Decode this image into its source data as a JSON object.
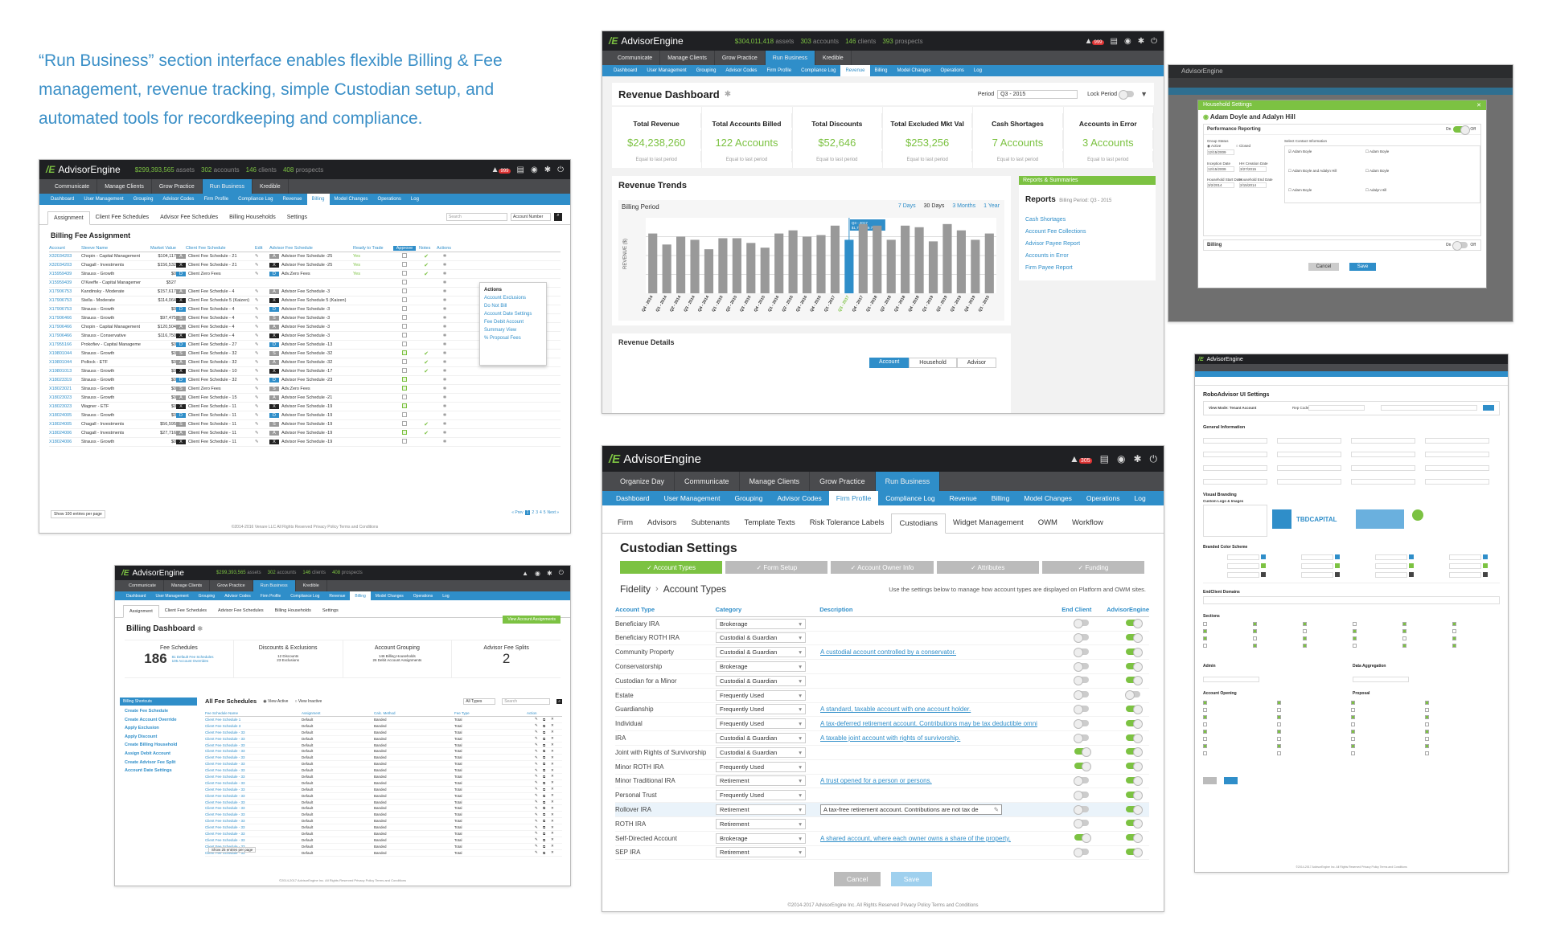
{
  "tagline": "“Run Business” section interface enables flexible Billing & Fee management, revenue tracking, simple Custodian setup, and automated tools for recordkeeping and compliance.",
  "brand": "AdvisorEngine",
  "s1": {
    "assets": "$299,393,565",
    "assets_lbl": "assets",
    "accts": "302",
    "accts_lbl": "accounts",
    "clients": "146",
    "clients_lbl": "clients",
    "prospects": "408",
    "prospects_lbl": "prospects",
    "badge": "999",
    "nav1": [
      "Communicate",
      "Manage Clients",
      "Grow Practice",
      "Run Business",
      "Kredible"
    ],
    "nav2": [
      "Dashboard",
      "User Management",
      "Grouping",
      "Advisor Codes",
      "Firm Profile",
      "Compliance Log",
      "Revenue",
      "Billing",
      "Model Changes",
      "Operations",
      "Log"
    ],
    "tabs": [
      "Assignment",
      "Client Fee Schedules",
      "Advisor Fee Schedules",
      "Billing Households",
      "Settings"
    ],
    "search_placeholder": "Search",
    "filter": "Account Number",
    "title": "Billing Fee Assignment",
    "headers": [
      "Account",
      "Sleeve Name",
      "Market Value",
      "Client Fee Schedule",
      "Edit",
      "Advisor Fee Schedule",
      "Ready to Trade",
      "Approve",
      "Notes",
      "Actions"
    ],
    "rows": [
      [
        "X32034203",
        "Chopin - Capital Management",
        "$104,117",
        "Client Fee Schedule - 21",
        "Advisor Fee Schedule -25",
        "Yes"
      ],
      [
        "X32034203",
        "Chagall - Investments",
        "$156,532",
        "Client Fee Schedule - 21",
        "Advisor Fee Schedule -25",
        "Yes"
      ],
      [
        "X15959439",
        "Strauss - Growth",
        "$0",
        "Client Zero Fees",
        "Adv.Zero Fees",
        "Yes"
      ],
      [
        "X15959439",
        "O'Keeffe - Capital Management",
        "$527",
        "",
        "",
        ""
      ],
      [
        "X17906753",
        "Kandinsky - Moderate",
        "$157,617",
        "Client Fee Schedule - 4",
        "Advisor Fee Schedule -3",
        ""
      ],
      [
        "X17906753",
        "Stella - Moderate",
        "$114,064",
        "Client Fee Schedule 5 (Kaizen)",
        "Advisor Fee Schedule 5 (Kaizen)",
        ""
      ],
      [
        "X17906753",
        "Strauss - Growth",
        "$0",
        "Client Fee Schedule - 4",
        "Advisor Fee Schedule -3",
        ""
      ],
      [
        "X17906466",
        "Strauss - Growth",
        "$97,475",
        "Client Fee Schedule - 4",
        "Advisor Fee Schedule -3",
        ""
      ],
      [
        "X17906466",
        "Chopin - Capital Management",
        "$120,504",
        "Client Fee Schedule - 4",
        "Advisor Fee Schedule -3",
        ""
      ],
      [
        "X17906466",
        "Strauss - Conservative",
        "$116,750",
        "Client Fee Schedule - 4",
        "Advisor Fee Schedule -3",
        ""
      ],
      [
        "X17955166",
        "Prokofiev - Capital Management",
        "$0",
        "Client Fee Schedule - 27",
        "Advisor Fee Schedule -13",
        ""
      ],
      [
        "X19801044",
        "Strauss - Growth",
        "$0",
        "Client Fee Schedule - 32",
        "Advisor Fee Schedule -32",
        ""
      ],
      [
        "X19801044",
        "Pollock - ETF",
        "$0",
        "Client Fee Schedule - 32",
        "Advisor Fee Schedule -32",
        ""
      ],
      [
        "X19801013",
        "Strauss - Growth",
        "$0",
        "Client Fee Schedule - 10",
        "Advisor Fee Schedule -17",
        ""
      ],
      [
        "X18023319",
        "Strauss - Growth",
        "$0",
        "Client Fee Schedule - 32",
        "Advisor Fee Schedule -23",
        ""
      ],
      [
        "X18023021",
        "Strauss - Growth",
        "$0",
        "Client Zero Fees",
        "Adv.Zero Fees",
        ""
      ],
      [
        "X18023023",
        "Strauss - Growth",
        "$0",
        "Client Fee Schedule - 15",
        "Advisor Fee Schedule -21",
        ""
      ],
      [
        "X18023023",
        "Wagner - ETF",
        "$0",
        "Client Fee Schedule - 11",
        "Advisor Fee Schedule -19",
        ""
      ],
      [
        "X18024005",
        "Strauss - Growth",
        "$0",
        "Client Fee Schedule - 11",
        "Advisor Fee Schedule -19",
        ""
      ],
      [
        "X18024005",
        "Chagall - Investments",
        "$56,595",
        "Client Fee Schedule - 11",
        "Advisor Fee Schedule -19",
        ""
      ],
      [
        "X18024006",
        "Chagall - Investments",
        "$27,716",
        "Client Fee Schedule - 11",
        "Advisor Fee Schedule -19",
        ""
      ],
      [
        "X18024006",
        "Strauss - Growth",
        "$0",
        "Client Fee Schedule - 11",
        "Advisor Fee Schedule -19",
        ""
      ]
    ],
    "actions_title": "Actions",
    "actions": [
      "Account Exclusions",
      "Do Not Bill",
      "Account Date Settings",
      "Fee Debit Account",
      "Summary View",
      "% Proposal Fees"
    ],
    "show": "Show 100 entries per page",
    "pages": [
      "« Prev",
      "1",
      "2",
      "3",
      "4",
      "5",
      "Next »"
    ],
    "footer": "©2014-2016 Venare LLC All Rights Reserved   Privacy Policy   Terms and Conditions"
  },
  "s2": {
    "assets": "$304,011,418",
    "assets_lbl": "assets",
    "accts": "303",
    "accts_lbl": "accounts",
    "clients": "146",
    "clients_lbl": "clients",
    "prospects": "393",
    "prospects_lbl": "prospects",
    "badge": "999",
    "nav1": [
      "Communicate",
      "Manage Clients",
      "Grow Practice",
      "Run Business",
      "Kredible"
    ],
    "nav2": [
      "Dashboard",
      "User Management",
      "Grouping",
      "Advisor Codes",
      "Firm Profile",
      "Compliance Log",
      "Revenue",
      "Billing",
      "Model Changes",
      "Operations",
      "Log"
    ],
    "title": "Revenue Dashboard",
    "period_lbl": "Period",
    "period": "Q3 - 2015",
    "lock": "Lock Period",
    "kpis": [
      {
        "t": "Total Revenue",
        "v": "$24,238,260",
        "s": "Equal to last period"
      },
      {
        "t": "Total Accounts Billed",
        "v": "122 Accounts",
        "s": "Equal to last period"
      },
      {
        "t": "Total Discounts",
        "v": "$52,646",
        "s": "Equal to last period"
      },
      {
        "t": "Total Excluded Mkt Val",
        "v": "$253,256",
        "s": "Equal to last period"
      },
      {
        "t": "Cash Shortages",
        "v": "7 Accounts",
        "s": "Equal to last period"
      },
      {
        "t": "Accounts in Error",
        "v": "3 Accounts",
        "s": "Equal to last period"
      }
    ],
    "trends_title": "Revenue Trends",
    "billing_period": "Billing Period",
    "ranges": [
      "7 Days",
      "30 Days",
      "3 Months",
      "1 Year"
    ],
    "reports_hdr": "Reports & Summaries",
    "reports_title": "Reports",
    "reports_period": "Billing Period: Q3 - 2015",
    "reports": [
      "Cash Shortages",
      "Account Fee Collections",
      "Advisor Payee Report",
      "Accounts in Error",
      "Firm Payee Report"
    ],
    "details_title": "Revenue Details",
    "detail_tabs": [
      "Account",
      "Household",
      "Advisor"
    ],
    "tooltip_q": "Q3 - 2017",
    "tooltip_v": "$1,726,849.70"
  },
  "chart_data": {
    "type": "bar",
    "ylabel": "REVENUE ($)",
    "categories": [
      "Q4 - 2014",
      "Q1 - 2014",
      "Q2 - 2014",
      "Q3 - 2014",
      "Q4 - 2014",
      "Q1 - 2015",
      "Q2 - 2015",
      "Q3 - 2015",
      "Q4 - 2015",
      "Q1 - 2016",
      "Q2 - 2016",
      "Q3 - 2016",
      "Q4 - 2016",
      "Q1 - 2017",
      "Q3 - 2017",
      "Q4 - 2017",
      "Q1 - 2018",
      "Q2 - 2018",
      "Q3 - 2018",
      "Q4 - 2018",
      "Q1 - 2019",
      "Q2 - 2019",
      "Q3 - 2019",
      "Q4 - 2019",
      "Q1 - 2015"
    ],
    "values": [
      1.9,
      1.55,
      1.8,
      1.7,
      1.4,
      1.75,
      1.75,
      1.6,
      1.45,
      1.9,
      2.0,
      1.8,
      1.85,
      2.15,
      1.7,
      2.2,
      2.15,
      1.7,
      2.15,
      2.1,
      1.65,
      2.2,
      2.0,
      1.7,
      1.9
    ],
    "highlight_index": 14
  },
  "s3": {
    "brand": "AdvisorEngine",
    "modal_title": "Household Settings",
    "name": "Adam Doyle and Adalyn Hill",
    "section": "Performance Reporting",
    "on": "On",
    "off": "Off",
    "group_status": "Group Status",
    "active": "Active",
    "closed": "Closed",
    "select_contact": "Select Contact Information",
    "d1": "12/15/2009",
    "inception": "Inception Date",
    "d2": "12/15/2009",
    "hh_creation": "HH Creation Date",
    "d3": "3/27/2015",
    "hh_start": "Household Start Date",
    "d4": "3/2/2014",
    "hh_end": "Household End Date",
    "d5": "2/15/2014",
    "contacts": [
      "Adam Boyle",
      "Adam Boyle",
      "Adam Boyle and Adalyn Hill",
      "Adam Boyle",
      "Adam Boyle",
      "Adalyn Hill"
    ],
    "billing": "Billing",
    "cancel": "Cancel",
    "save": "Save"
  },
  "s4": {
    "assets": "$299,393,565",
    "assets_lbl": "assets",
    "accts": "302",
    "accts_lbl": "accounts",
    "clients": "146",
    "clients_lbl": "clients",
    "prospects": "408",
    "prospects_lbl": "prospects",
    "nav1": [
      "Communicate",
      "Manage Clients",
      "Grow Practice",
      "Run Business",
      "Kredible"
    ],
    "nav2": [
      "Dashboard",
      "User Management",
      "Grouping",
      "Advisor Codes",
      "Firm Profile",
      "Compliance Log",
      "Revenue",
      "Billing",
      "Model Changes",
      "Operations",
      "Log"
    ],
    "tabs": [
      "Assignment",
      "Client Fee Schedules",
      "Advisor Fee Schedules",
      "Billing Households",
      "Settings"
    ],
    "title": "Billing Dashboard",
    "view_btn": "View Account Assignments",
    "k1_t": "Fee Schedules",
    "k1_v": "186",
    "k1_a": "81 Default Fee Schedules",
    "k1_b": "105 Account Overrides",
    "k2_t": "Discounts & Exclusions",
    "k2_a": "12 Discounts",
    "k2_b": "23 Exclusions",
    "k3_t": "Account Grouping",
    "k3_a": "146 Billing Households",
    "k3_b": "26 Debit Account Assignments",
    "k4_t": "Advisor Fee Splits",
    "k4_v": "2",
    "shortcuts_title": "Billing Shortcuts",
    "shortcuts": [
      "Create Fee Schedule",
      "Create Account Override",
      "Apply Exclusion",
      "Apply Discount",
      "Create Billing Household",
      "Assign Debit Account",
      "Create Advisor Fee Split",
      "Account Date Settings"
    ],
    "all_title": "All Fee Schedules",
    "view_active": "View Active",
    "view_inactive": "View Inactive",
    "all_types": "All Types",
    "search": "Search",
    "cols": [
      "Fee Schedule Name",
      "Assignment",
      "Calc. Method",
      "Fee Type",
      "Action"
    ],
    "rows": [
      [
        "Client Fee Schedule 1",
        "Default",
        "Banded",
        "Total"
      ],
      [
        "Client Fee Schedule 3",
        "Default",
        "Banded",
        "Total"
      ],
      [
        "Client Fee Schedule - 33",
        "Default",
        "Banded",
        "Total"
      ],
      [
        "Client Fee Schedule - 33",
        "Default",
        "Banded",
        "Total"
      ],
      [
        "Client Fee Schedule - 33",
        "Default",
        "Banded",
        "Total"
      ],
      [
        "Client Fee Schedule - 33",
        "Default",
        "Banded",
        "Total"
      ],
      [
        "Client Fee Schedule - 33",
        "Default",
        "Banded",
        "Total"
      ],
      [
        "Client Fee Schedule - 33",
        "Default",
        "Banded",
        "Total"
      ],
      [
        "Client Fee Schedule - 33",
        "Default",
        "Banded",
        "Total"
      ],
      [
        "Client Fee Schedule - 33",
        "Default",
        "Banded",
        "Total"
      ],
      [
        "Client Fee Schedule - 33",
        "Default",
        "Banded",
        "Total"
      ],
      [
        "Client Fee Schedule - 33",
        "Default",
        "Banded",
        "Total"
      ],
      [
        "Client Fee Schedule - 33",
        "Default",
        "Banded",
        "Total"
      ],
      [
        "Client Fee Schedule - 33",
        "Default",
        "Banded",
        "Total"
      ],
      [
        "Client Fee Schedule - 33",
        "Default",
        "Banded",
        "Total"
      ],
      [
        "Client Fee Schedule - 33",
        "Default",
        "Banded",
        "Total"
      ],
      [
        "Client Fee Schedule - 33",
        "Default",
        "Banded",
        "Total"
      ],
      [
        "Client Fee Schedule - 33",
        "Default",
        "Banded",
        "Total"
      ],
      [
        "Client Fee Schedule - 33",
        "Default",
        "Banded",
        "Total"
      ],
      [
        "Client Fee Schedule - 33",
        "Default",
        "Banded",
        "Total"
      ],
      [
        "Client Fee Schedule - 33",
        "Default",
        "Banded",
        "Total"
      ],
      [
        "Client Fee Schedule - 33",
        "Default",
        "Banded",
        "Total"
      ]
    ],
    "show": "Show 25 entries per page",
    "footer": "©2014-2017 AdvisorEngine Inc. All Rights Reserved   Privacy Policy   Terms and Conditions"
  },
  "s5": {
    "badge": "305",
    "nav1": [
      "Organize Day",
      "Communicate",
      "Manage Clients",
      "Grow Practice",
      "Run Business"
    ],
    "nav2": [
      "Dashboard",
      "User Management",
      "Grouping",
      "Advisor Codes",
      "Firm Profile",
      "Compliance Log",
      "Revenue",
      "Billing",
      "Model Changes",
      "Operations",
      "Log"
    ],
    "tabs": [
      "Firm",
      "Advisors",
      "Subtenants",
      "Template Texts",
      "Risk Tolerance Labels",
      "Custodians",
      "Widget Management",
      "OWM",
      "Workflow"
    ],
    "title": "Custodian Settings",
    "steps": [
      "✓ Account Types",
      "✓ Form Setup",
      "✓ Account Owner Info",
      "✓ Attributes",
      "✓ Funding"
    ],
    "crumb1": "Fidelity",
    "crumb2": "Account Types",
    "hint": "Use the settings below to manage how account types are displayed on Platform and OWM sites.",
    "cols": [
      "Account Type",
      "Category",
      "Description",
      "End Client",
      "AdvisorEngine"
    ],
    "rows": [
      {
        "n": "Beneficiary IRA",
        "c": "Brokerage",
        "d": "",
        "e": false,
        "a": true
      },
      {
        "n": "Beneficiary ROTH IRA",
        "c": "Custodial & Guardian",
        "d": "",
        "e": false,
        "a": true
      },
      {
        "n": "Community Property",
        "c": "Custodial & Guardian",
        "d": "A custodial account controlled by a conservator.",
        "e": false,
        "a": true
      },
      {
        "n": "Conservatorship",
        "c": "Brokerage",
        "d": "",
        "e": false,
        "a": true
      },
      {
        "n": "Custodian for a Minor",
        "c": "Custodial & Guardian",
        "d": "",
        "e": false,
        "a": true
      },
      {
        "n": "Estate",
        "c": "Frequently Used",
        "d": "",
        "e": false,
        "a": false
      },
      {
        "n": "Guardianship",
        "c": "Frequently Used",
        "d": "A standard, taxable account with one account holder.",
        "e": false,
        "a": true
      },
      {
        "n": "Individual",
        "c": "Frequently Used",
        "d": "A tax-deferred retirement account. Contributions may be tax deductible omni",
        "e": false,
        "a": true
      },
      {
        "n": "IRA",
        "c": "Custodial & Guardian",
        "d": "A taxable joint account with rights of survivorship.",
        "e": false,
        "a": true
      },
      {
        "n": "Joint with Rights of Survivorship",
        "c": "Custodial & Guardian",
        "d": "",
        "e": true,
        "a": true
      },
      {
        "n": "Minor ROTH IRA",
        "c": "Frequently Used",
        "d": "",
        "e": true,
        "a": true
      },
      {
        "n": "Minor Traditional IRA",
        "c": "Retirement",
        "d": "A trust opened for a person or persons.",
        "e": false,
        "a": true
      },
      {
        "n": "Personal Trust",
        "c": "Frequently Used",
        "d": "",
        "e": false,
        "a": true
      },
      {
        "n": "Rollover IRA",
        "c": "Retirement",
        "d": "A tax-free retirement account. Contributions are not tax de",
        "e": false,
        "a": true
      },
      {
        "n": "ROTH IRA",
        "c": "Retirement",
        "d": "",
        "e": false,
        "a": true
      },
      {
        "n": "Self-Directed Account",
        "c": "Brokerage",
        "d": "A shared account, where each owner owns a share of the property.",
        "e": true,
        "a": true
      },
      {
        "n": "SEP IRA",
        "c": "Retirement",
        "d": "",
        "e": false,
        "a": true
      }
    ],
    "cancel": "Cancel",
    "save": "Save",
    "footer": "©2014-2017 AdvisorEngine Inc. All Rights Reserved   Privacy Policy   Terms and Conditions"
  },
  "s6": {
    "title": "RoboAdvisor UI Settings",
    "view_mode": "View Mode: Tenant Account",
    "rep_code": "Rep Code",
    "general": "General Information",
    "visual": "Visual Branding",
    "custom_logo": "Custom Logo & Images",
    "tbd": "TBDCAPITAL",
    "brand_scheme": "Branded Color Scheme",
    "endclient": "EndClient Domains",
    "sections": "Sections",
    "admin": "Admin",
    "data_agg": "Data Aggregation",
    "acct_open": "Account Opening",
    "proposal": "Proposal",
    "footer": "©2014-2017 AdvisorEngine Inc. All Rights Reserved   Privacy Policy   Terms and Conditions"
  }
}
